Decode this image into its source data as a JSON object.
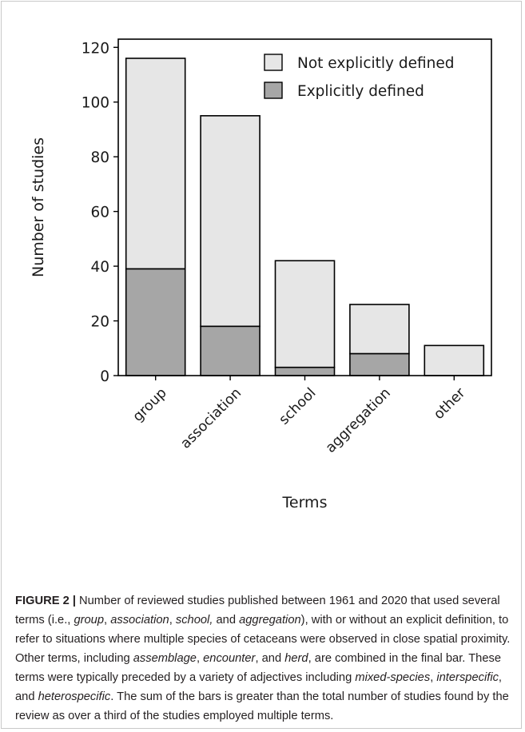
{
  "chart_data": {
    "type": "bar",
    "stacked": true,
    "categories": [
      "group",
      "association",
      "school",
      "aggregation",
      "other"
    ],
    "series": [
      {
        "name": "Explicitly defined",
        "values": [
          39,
          18,
          3,
          8,
          0
        ],
        "color": "#a6a6a6"
      },
      {
        "name": "Not explicitly defined",
        "values": [
          77,
          77,
          39,
          18,
          11
        ],
        "color": "#e6e6e6"
      }
    ],
    "xlabel": "Terms",
    "ylabel": "Number of studies",
    "ylim": [
      0,
      123
    ],
    "yticks": [
      0,
      20,
      40,
      60,
      80,
      100,
      120
    ],
    "legend_position": "top-right",
    "legend_order": [
      "Not explicitly defined",
      "Explicitly defined"
    ],
    "grid": false
  },
  "caption": {
    "label": "FIGURE 2 |",
    "segments": [
      {
        "text": " Number of reviewed studies published between 1961 and 2020 that used several terms (i.e., ",
        "italic": false
      },
      {
        "text": "group",
        "italic": true
      },
      {
        "text": ", ",
        "italic": false
      },
      {
        "text": "association",
        "italic": true
      },
      {
        "text": ", ",
        "italic": false
      },
      {
        "text": "school,",
        "italic": true
      },
      {
        "text": " and ",
        "italic": false
      },
      {
        "text": "aggregation",
        "italic": true
      },
      {
        "text": "), with or without an explicit definition, to refer to situations where multiple species of cetaceans were observed in close spatial proximity. Other terms, including ",
        "italic": false
      },
      {
        "text": "assemblage",
        "italic": true
      },
      {
        "text": ", ",
        "italic": false
      },
      {
        "text": "encounter",
        "italic": true
      },
      {
        "text": ", and ",
        "italic": false
      },
      {
        "text": "herd",
        "italic": true
      },
      {
        "text": ", are combined in the final bar. These terms were typically preceded by a variety of adjectives including ",
        "italic": false
      },
      {
        "text": "mixed-species",
        "italic": true
      },
      {
        "text": ", ",
        "italic": false
      },
      {
        "text": "interspecific",
        "italic": true
      },
      {
        "text": ", and ",
        "italic": false
      },
      {
        "text": "heterospecific",
        "italic": true
      },
      {
        "text": ". The sum of the bars is greater than the total number of studies found by the review as over a third of the studies employed multiple terms.",
        "italic": false
      }
    ]
  }
}
